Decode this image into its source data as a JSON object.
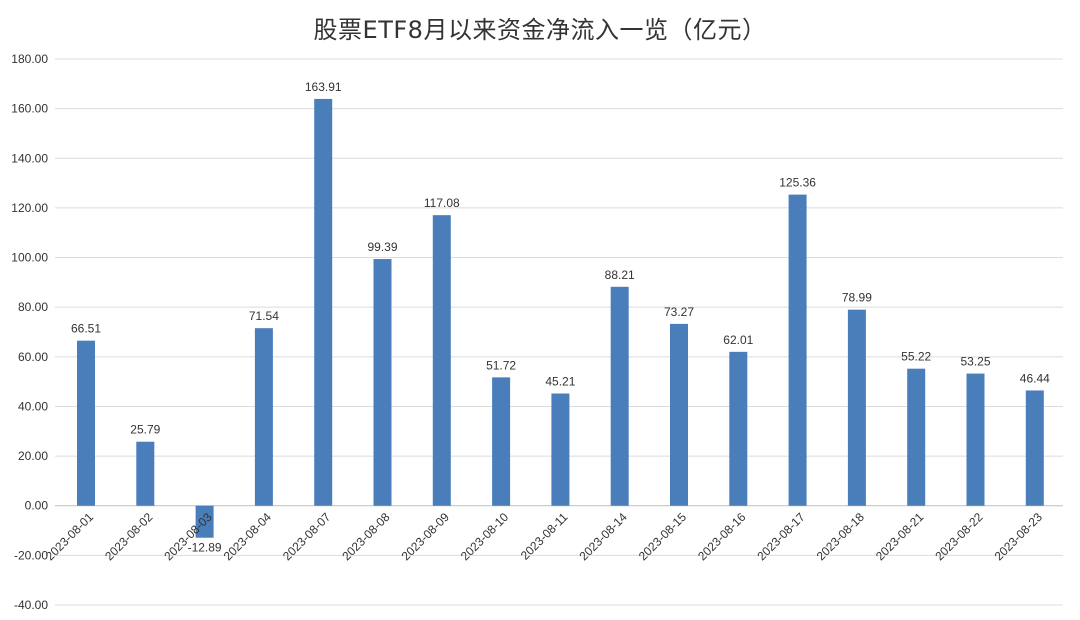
{
  "chart_data": {
    "type": "bar",
    "title": "股票ETF8月以来资金净流入一览（亿元）",
    "xlabel": "",
    "ylabel": "",
    "ylim": [
      -40,
      180
    ],
    "y_ticks": [
      "-40.00",
      "-20.00",
      "0.00",
      "20.00",
      "40.00",
      "60.00",
      "80.00",
      "100.00",
      "120.00",
      "140.00",
      "160.00",
      "180.00"
    ],
    "categories": [
      "2023-08-01",
      "2023-08-02",
      "2023-08-03",
      "2023-08-04",
      "2023-08-07",
      "2023-08-08",
      "2023-08-09",
      "2023-08-10",
      "2023-08-11",
      "2023-08-14",
      "2023-08-15",
      "2023-08-16",
      "2023-08-17",
      "2023-08-18",
      "2023-08-21",
      "2023-08-22",
      "2023-08-23"
    ],
    "values": [
      66.51,
      25.79,
      -12.89,
      71.54,
      163.91,
      99.39,
      117.08,
      51.72,
      45.21,
      88.21,
      73.27,
      62.01,
      125.36,
      78.99,
      55.22,
      53.25,
      46.44
    ],
    "value_labels": [
      "66.51",
      "25.79",
      "-12.89",
      "71.54",
      "163.91",
      "99.39",
      "117.08",
      "51.72",
      "45.21",
      "88.21",
      "73.27",
      "62.01",
      "125.36",
      "78.99",
      "55.22",
      "53.25",
      "46.44"
    ],
    "grid": true,
    "legend": "none",
    "bar_color": "#4a7ebb"
  }
}
